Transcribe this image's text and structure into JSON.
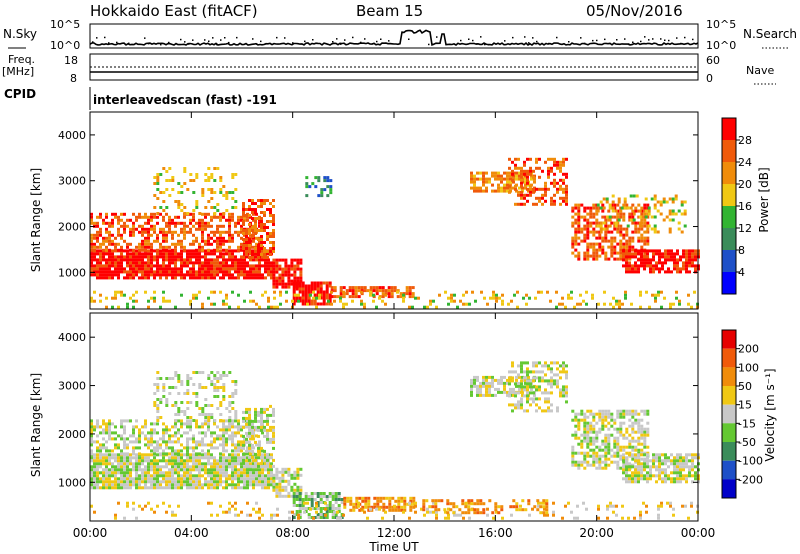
{
  "header": {
    "station": "Hokkaido East (fitACF)",
    "beam": "Beam 15",
    "date": "05/Nov/2016"
  },
  "noise_panel": {
    "left_label": "N.Sky",
    "right_label": "N.Search",
    "left_ticks": [
      "10^5",
      "10^0"
    ],
    "right_ticks": [
      "10^5",
      "10^0"
    ]
  },
  "freq_panel": {
    "left_label_1": "Freq.",
    "left_label_2": "[MHz]",
    "left_ticks": [
      "18",
      "8"
    ],
    "right_ticks": [
      "60",
      "0"
    ],
    "right_label": "Nave",
    "cpid_label": "CPID",
    "cpid_text": "interleavedscan (fast) -191"
  },
  "colors": {
    "power": [
      "#0000ff",
      "#1e50c8",
      "#3a8c5a",
      "#32b432",
      "#f0c814",
      "#f08c0a",
      "#f05a0a",
      "#ff0000"
    ],
    "velocity": [
      "#e60000",
      "#f05a0a",
      "#f08c0a",
      "#f0c814",
      "#c8c8c8",
      "#64c832",
      "#3a8c5a",
      "#1e50c8",
      "#0000c8"
    ]
  },
  "chart_data": [
    {
      "type": "heatmap",
      "name": "power",
      "ylabel": "Slant Range [km]",
      "y_ticks": [
        1000,
        2000,
        3000,
        4000
      ],
      "ylim": [
        200,
        4500
      ],
      "x_ticks": [
        "00:00",
        "04:00",
        "08:00",
        "12:00",
        "16:00",
        "20:00",
        "00:00"
      ],
      "colorbar_label": "Power [dB]",
      "colorbar_ticks": [
        "4",
        "8",
        "12",
        "16",
        "20",
        "24",
        "28"
      ],
      "regions": [
        {
          "t0": 0.0,
          "t1": 7.2,
          "r0": 900,
          "r1": 1500,
          "level": 7,
          "density": 0.85
        },
        {
          "t0": 0.0,
          "t1": 6.8,
          "r0": 1500,
          "r1": 2300,
          "level": 6,
          "density": 0.55
        },
        {
          "t0": 2.5,
          "t1": 5.8,
          "r0": 2300,
          "r1": 3300,
          "level": 4,
          "density": 0.25
        },
        {
          "t0": 6.0,
          "t1": 7.3,
          "r0": 1300,
          "r1": 2600,
          "level": 6,
          "density": 0.55
        },
        {
          "t0": 7.2,
          "t1": 8.3,
          "r0": 700,
          "r1": 1300,
          "level": 7,
          "density": 0.8
        },
        {
          "t0": 8.0,
          "t1": 9.5,
          "r0": 300,
          "r1": 800,
          "level": 7,
          "density": 0.85
        },
        {
          "t0": 9.5,
          "t1": 12.8,
          "r0": 450,
          "r1": 700,
          "level": 6,
          "density": 0.75
        },
        {
          "t0": 0.0,
          "t1": 24.0,
          "r0": 250,
          "r1": 600,
          "level": 4,
          "density": 0.18
        },
        {
          "t0": 8.5,
          "t1": 9.5,
          "r0": 2700,
          "r1": 3100,
          "level": 2,
          "density": 0.35
        },
        {
          "t0": 15.0,
          "t1": 17.5,
          "r0": 2800,
          "r1": 3200,
          "level": 5,
          "density": 0.65
        },
        {
          "t0": 16.5,
          "t1": 18.8,
          "r0": 2500,
          "r1": 3500,
          "level": 6,
          "density": 0.45
        },
        {
          "t0": 19.0,
          "t1": 22.0,
          "r0": 1300,
          "r1": 2500,
          "level": 6,
          "density": 0.6
        },
        {
          "t0": 21.0,
          "t1": 24.0,
          "r0": 1000,
          "r1": 1500,
          "level": 7,
          "density": 0.75
        },
        {
          "t0": 20.0,
          "t1": 23.5,
          "r0": 1900,
          "r1": 2700,
          "level": 4,
          "density": 0.3
        }
      ]
    },
    {
      "type": "heatmap",
      "name": "velocity",
      "ylabel": "Slant Range [km]",
      "y_ticks": [
        1000,
        2000,
        3000,
        4000
      ],
      "ylim": [
        200,
        4500
      ],
      "xlabel": "Time UT",
      "x_ticks": [
        "00:00",
        "04:00",
        "08:00",
        "12:00",
        "16:00",
        "20:00",
        "00:00"
      ],
      "colorbar_label": "Velocity [m s⁻¹]",
      "colorbar_ticks": [
        "200",
        "100",
        "50",
        "15",
        "-15",
        "-50",
        "-100",
        "-200"
      ],
      "regions": [
        {
          "t0": 0.0,
          "t1": 7.2,
          "r0": 900,
          "r1": 1600,
          "level": 4,
          "density": 0.9
        },
        {
          "t0": 0.0,
          "t1": 6.8,
          "r0": 1600,
          "r1": 2300,
          "level": 4,
          "density": 0.5
        },
        {
          "t0": 2.5,
          "t1": 5.8,
          "r0": 2300,
          "r1": 3300,
          "level": 4,
          "density": 0.3
        },
        {
          "t0": 6.0,
          "t1": 7.3,
          "r0": 1300,
          "r1": 2600,
          "level": 4,
          "density": 0.5
        },
        {
          "t0": 7.2,
          "t1": 8.3,
          "r0": 700,
          "r1": 1300,
          "level": 4,
          "density": 0.7
        },
        {
          "t0": 8.0,
          "t1": 10.0,
          "r0": 300,
          "r1": 800,
          "level": 5,
          "density": 0.7
        },
        {
          "t0": 10.0,
          "t1": 12.8,
          "r0": 400,
          "r1": 700,
          "level": 2,
          "density": 0.7
        },
        {
          "t0": 0.0,
          "t1": 24.0,
          "r0": 250,
          "r1": 600,
          "level": 3,
          "density": 0.15
        },
        {
          "t0": 15.0,
          "t1": 17.5,
          "r0": 2800,
          "r1": 3200,
          "level": 4,
          "density": 0.7
        },
        {
          "t0": 16.5,
          "t1": 18.8,
          "r0": 2500,
          "r1": 3500,
          "level": 4,
          "density": 0.45
        },
        {
          "t0": 19.0,
          "t1": 22.0,
          "r0": 1300,
          "r1": 2500,
          "level": 4,
          "density": 0.6
        },
        {
          "t0": 21.0,
          "t1": 24.0,
          "r0": 1000,
          "r1": 1600,
          "level": 4,
          "density": 0.75
        },
        {
          "t0": 13.0,
          "t1": 18.0,
          "r0": 400,
          "r1": 650,
          "level": 2,
          "density": 0.4
        }
      ]
    }
  ]
}
